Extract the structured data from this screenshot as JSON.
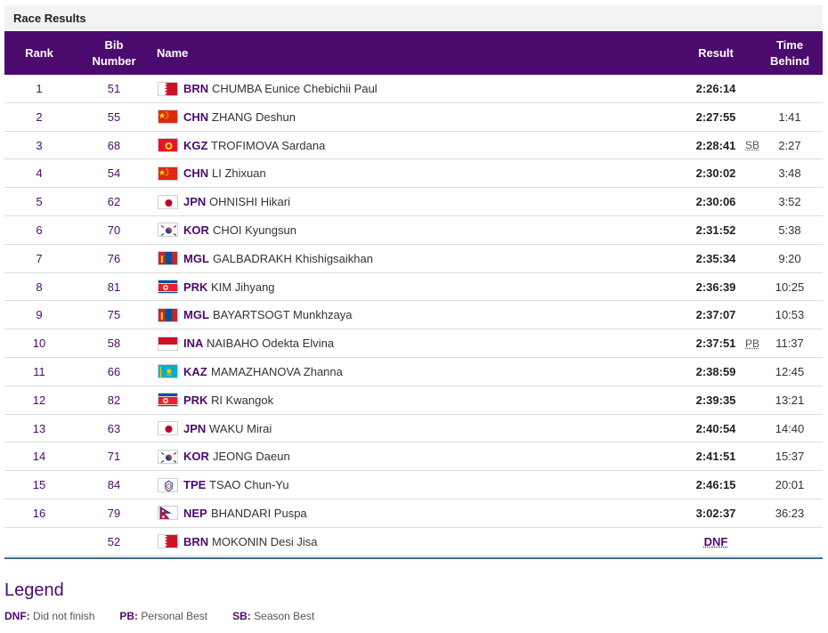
{
  "panel": {
    "title": "Race Results"
  },
  "columns": {
    "rank": "Rank",
    "bib_line1": "Bib",
    "bib_line2": "Number",
    "name": "Name",
    "result": "Result",
    "behind_line1": "Time",
    "behind_line2": "Behind"
  },
  "rows": [
    {
      "rank": "1",
      "bib": "51",
      "flag": "BRN",
      "noc": "BRN",
      "athlete": "CHUMBA Eunice Chebichii Paul",
      "result": "2:26:14",
      "mark": "",
      "behind": ""
    },
    {
      "rank": "2",
      "bib": "55",
      "flag": "CHN",
      "noc": "CHN",
      "athlete": "ZHANG Deshun",
      "result": "2:27:55",
      "mark": "",
      "behind": "1:41"
    },
    {
      "rank": "3",
      "bib": "68",
      "flag": "KGZ",
      "noc": "KGZ",
      "athlete": "TROFIMOVA Sardana",
      "result": "2:28:41",
      "mark": "SB",
      "behind": "2:27"
    },
    {
      "rank": "4",
      "bib": "54",
      "flag": "CHN",
      "noc": "CHN",
      "athlete": "LI Zhixuan",
      "result": "2:30:02",
      "mark": "",
      "behind": "3:48"
    },
    {
      "rank": "5",
      "bib": "62",
      "flag": "JPN",
      "noc": "JPN",
      "athlete": "OHNISHI Hikari",
      "result": "2:30:06",
      "mark": "",
      "behind": "3:52"
    },
    {
      "rank": "6",
      "bib": "70",
      "flag": "KOR",
      "noc": "KOR",
      "athlete": "CHOI Kyungsun",
      "result": "2:31:52",
      "mark": "",
      "behind": "5:38"
    },
    {
      "rank": "7",
      "bib": "76",
      "flag": "MGL",
      "noc": "MGL",
      "athlete": "GALBADRAKH Khishigsaikhan",
      "result": "2:35:34",
      "mark": "",
      "behind": "9:20"
    },
    {
      "rank": "8",
      "bib": "81",
      "flag": "PRK",
      "noc": "PRK",
      "athlete": "KIM Jihyang",
      "result": "2:36:39",
      "mark": "",
      "behind": "10:25"
    },
    {
      "rank": "9",
      "bib": "75",
      "flag": "MGL",
      "noc": "MGL",
      "athlete": "BAYARTSOGT Munkhzaya",
      "result": "2:37:07",
      "mark": "",
      "behind": "10:53"
    },
    {
      "rank": "10",
      "bib": "58",
      "flag": "INA",
      "noc": "INA",
      "athlete": "NAIBAHO Odekta Elvina",
      "result": "2:37:51",
      "mark": "PB",
      "behind": "11:37"
    },
    {
      "rank": "11",
      "bib": "66",
      "flag": "KAZ",
      "noc": "KAZ",
      "athlete": "MAMAZHANOVA Zhanna",
      "result": "2:38:59",
      "mark": "",
      "behind": "12:45"
    },
    {
      "rank": "12",
      "bib": "82",
      "flag": "PRK",
      "noc": "PRK",
      "athlete": "RI Kwangok",
      "result": "2:39:35",
      "mark": "",
      "behind": "13:21"
    },
    {
      "rank": "13",
      "bib": "63",
      "flag": "JPN",
      "noc": "JPN",
      "athlete": "WAKU Mirai",
      "result": "2:40:54",
      "mark": "",
      "behind": "14:40"
    },
    {
      "rank": "14",
      "bib": "71",
      "flag": "KOR",
      "noc": "KOR",
      "athlete": "JEONG Daeun",
      "result": "2:41:51",
      "mark": "",
      "behind": "15:37"
    },
    {
      "rank": "15",
      "bib": "84",
      "flag": "TPE",
      "noc": "TPE",
      "athlete": "TSAO Chun-Yu",
      "result": "2:46:15",
      "mark": "",
      "behind": "20:01"
    },
    {
      "rank": "16",
      "bib": "79",
      "flag": "NEP",
      "noc": "NEP",
      "athlete": "BHANDARI Puspa",
      "result": "3:02:37",
      "mark": "",
      "behind": "36:23"
    },
    {
      "rank": "",
      "bib": "52",
      "flag": "BRN",
      "noc": "BRN",
      "athlete": "MOKONIN Desi Jisa",
      "result": "DNF",
      "mark": "",
      "behind": ""
    }
  ],
  "legend": {
    "title": "Legend",
    "items": [
      {
        "code": "DNF:",
        "text": "Did not finish"
      },
      {
        "code": "PB:",
        "text": "Personal Best"
      },
      {
        "code": "SB:",
        "text": "Season Best"
      }
    ]
  },
  "colors": {
    "header_bg": "#4b0a6e",
    "accent": "#4b0a6e",
    "divider": "#3a6f8f"
  }
}
